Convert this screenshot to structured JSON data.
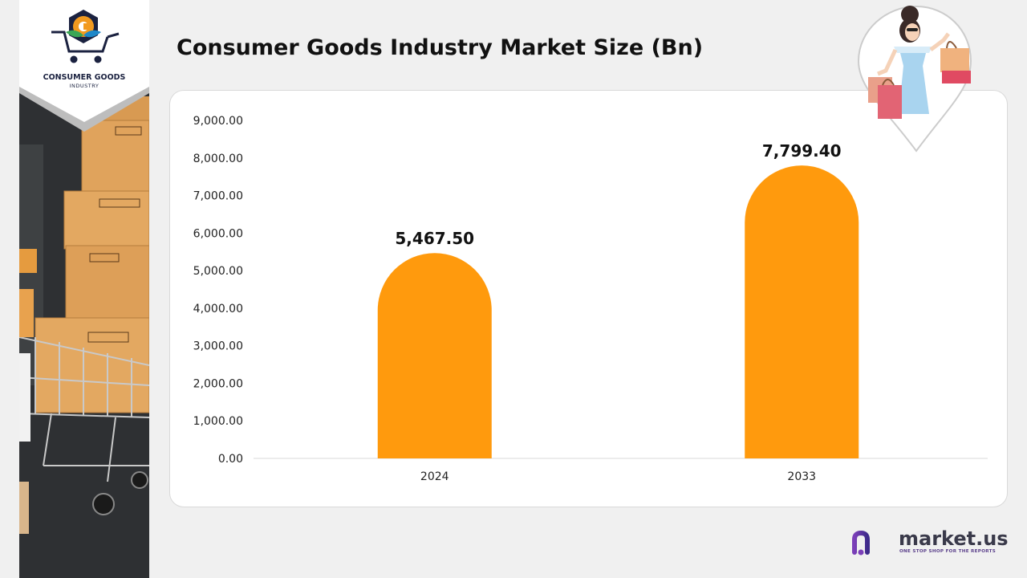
{
  "header": {
    "title": "Consumer Goods Industry Market Size (Bn)"
  },
  "badge": {
    "line1": "CONSUMER GOODS",
    "line2": "INDUSTRY"
  },
  "brand": {
    "name": "market.us",
    "tagline": "ONE STOP SHOP FOR THE REPORTS"
  },
  "icons": [
    "consumer-goods-logo-icon",
    "shopping-woman-icon",
    "market-us-logo-icon"
  ],
  "colors": {
    "bar": "#ff9a0d",
    "axis": "#d9d9d9",
    "text": "#222222"
  },
  "chart_data": {
    "type": "bar",
    "categories": [
      "2024",
      "2033"
    ],
    "values": [
      5467.5,
      7799.4
    ],
    "value_labels": [
      "5,467.50",
      "7,799.40"
    ],
    "y_ticks": [
      "0.00",
      "1,000.00",
      "2,000.00",
      "3,000.00",
      "4,000.00",
      "5,000.00",
      "6,000.00",
      "7,000.00",
      "8,000.00",
      "9,000.00"
    ],
    "ylim": [
      0,
      9000
    ],
    "grid": false,
    "legend": "none"
  }
}
